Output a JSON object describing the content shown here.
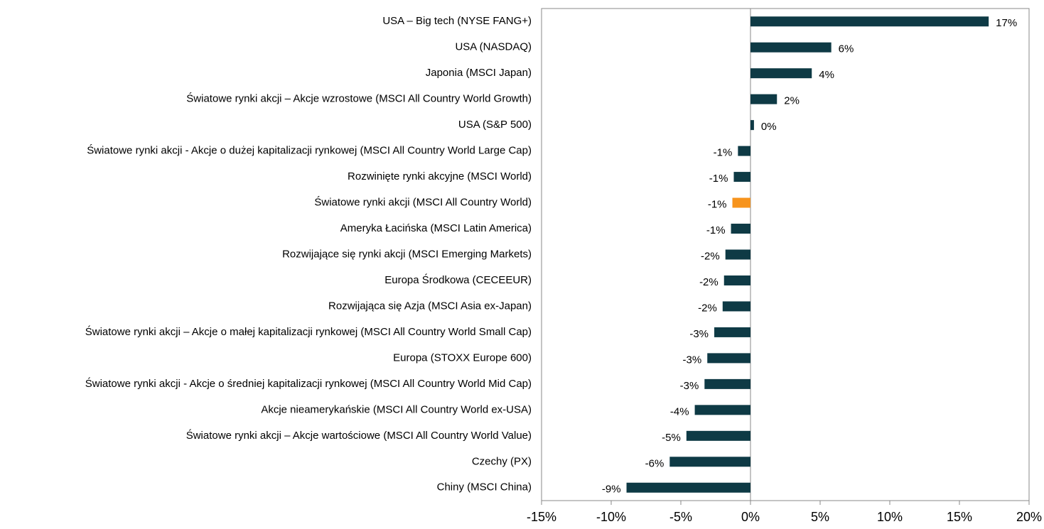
{
  "chart_data": {
    "type": "barh",
    "categories": [
      "USA – Big tech (NYSE FANG+)",
      "USA (NASDAQ)",
      "Japonia (MSCI Japan)",
      "Światowe rynki akcji – Akcje wzrostowe (MSCI All Country World Growth)",
      "USA (S&P 500)",
      "Światowe rynki akcji - Akcje o dużej kapitalizacji rynkowej (MSCI All Country World Large Cap)",
      "Rozwinięte rynki akcyjne (MSCI World)",
      "Światowe rynki akcji (MSCI All Country World)",
      "Ameryka Łacińska (MSCI Latin America)",
      "Rozwijające się rynki akcji (MSCI Emerging Markets)",
      "Europa Środkowa (CECEEUR)",
      "Rozwijająca się Azja (MSCI Asia ex-Japan)",
      "Światowe rynki akcji – Akcje o małej kapitalizacji rynkowej (MSCI All Country World Small Cap)",
      "Europa (STOXX Europe 600)",
      "Światowe rynki akcji - Akcje o średniej kapitalizacji rynkowej (MSCI All Country World Mid Cap)",
      "Akcje nieamerykańskie (MSCI All Country World ex-USA)",
      "Światowe rynki akcji – Akcje wartościowe (MSCI All Country World Value)",
      "Czechy (PX)",
      "Chiny (MSCI China)"
    ],
    "values": [
      17.1,
      5.8,
      4.4,
      1.9,
      0.25,
      -0.9,
      -1.2,
      -1.3,
      -1.4,
      -1.8,
      -1.9,
      -2.0,
      -2.6,
      -3.1,
      -3.3,
      -4.0,
      -4.6,
      -5.8,
      -8.9
    ],
    "value_labels": [
      "17%",
      "6%",
      "4%",
      "2%",
      "0%",
      "-1%",
      "-1%",
      "-1%",
      "-1%",
      "-2%",
      "-2%",
      "-2%",
      "-3%",
      "-3%",
      "-3%",
      "-4%",
      "-5%",
      "-6%",
      "-9%"
    ],
    "colors": [
      "#0e3a45",
      "#0e3a45",
      "#0e3a45",
      "#0e3a45",
      "#0e3a45",
      "#0e3a45",
      "#0e3a45",
      "#f7941d",
      "#0e3a45",
      "#0e3a45",
      "#0e3a45",
      "#0e3a45",
      "#0e3a45",
      "#0e3a45",
      "#0e3a45",
      "#0e3a45",
      "#0e3a45",
      "#0e3a45",
      "#0e3a45"
    ],
    "xlim": [
      -15,
      20
    ],
    "xticks": [
      {
        "value": -15,
        "label": "-15%"
      },
      {
        "value": -10,
        "label": "-10%"
      },
      {
        "value": -5,
        "label": "-5%"
      },
      {
        "value": 0,
        "label": "0%"
      },
      {
        "value": 5,
        "label": "5%"
      },
      {
        "value": 10,
        "label": "10%"
      },
      {
        "value": 15,
        "label": "15%"
      },
      {
        "value": 20,
        "label": "20%"
      }
    ],
    "grid": false
  }
}
